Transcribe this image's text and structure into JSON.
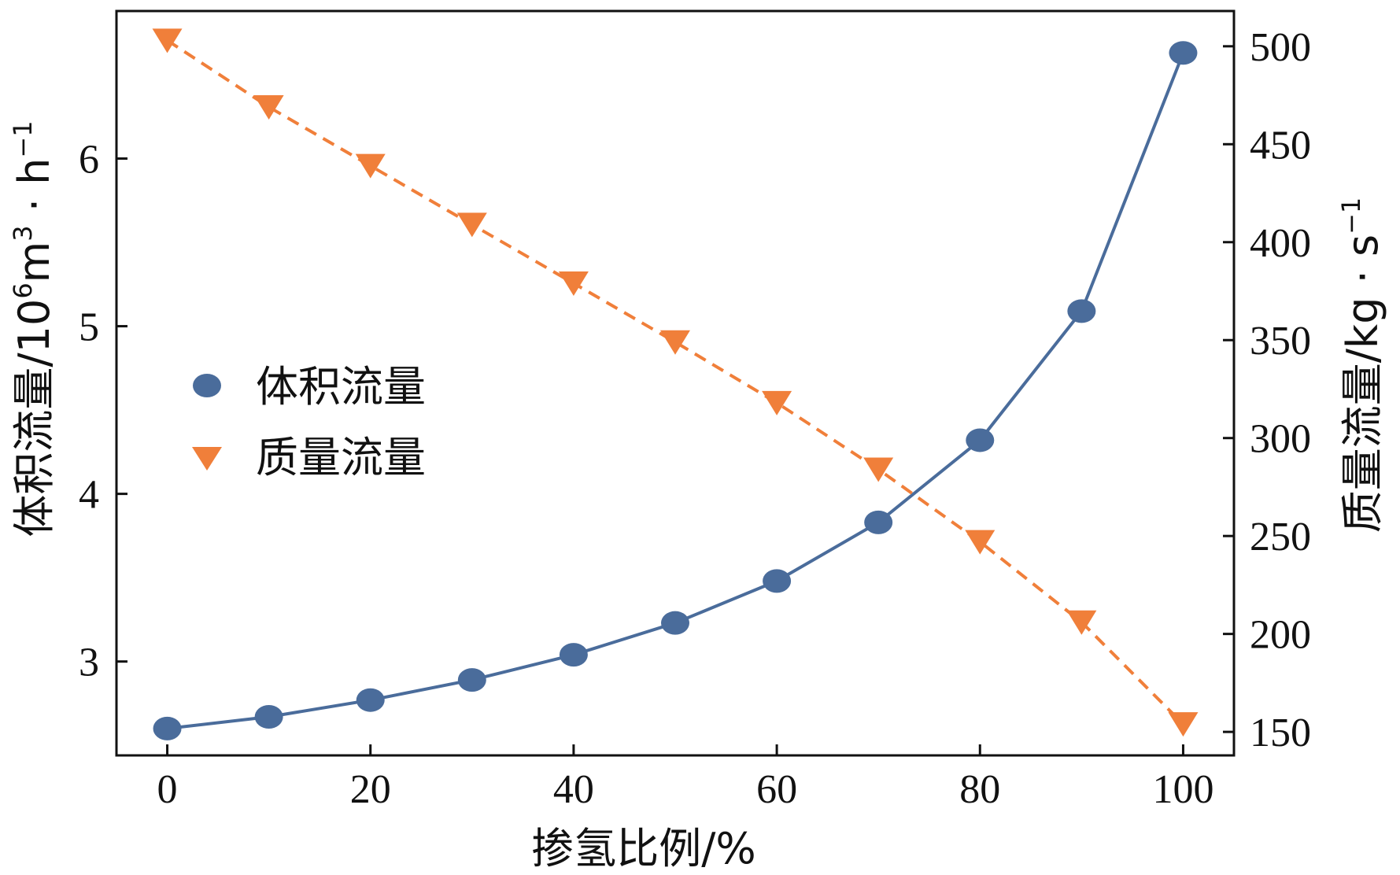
{
  "chart_data": {
    "type": "line",
    "x": [
      0,
      10,
      20,
      30,
      40,
      50,
      60,
      70,
      80,
      90,
      100
    ],
    "xlabel": "掺氢比例/%",
    "xlim": [
      -5,
      105
    ],
    "xticks": [
      0,
      20,
      40,
      60,
      80,
      100
    ],
    "series": [
      {
        "name": "体积流量",
        "axis": "left",
        "marker": "circle",
        "line_style": "solid",
        "color": "#4a6c9b",
        "values": [
          2.6,
          2.67,
          2.77,
          2.89,
          3.04,
          3.23,
          3.48,
          3.83,
          4.32,
          5.09,
          6.63
        ]
      },
      {
        "name": "质量流量",
        "axis": "right",
        "marker": "triangle-down",
        "line_style": "dashed",
        "color": "#f07f3a",
        "values": [
          503,
          469,
          439,
          409,
          379,
          349,
          318,
          284,
          247,
          206,
          154
        ]
      }
    ],
    "ylabel_left": {
      "main": "体积流量/10",
      "sup1": "6",
      "mid": "m",
      "sup2": "3",
      "dot": " · h",
      "sup3": "−1"
    },
    "ylim_left": [
      2.44,
      6.88
    ],
    "yticks_left": [
      3,
      4,
      5,
      6
    ],
    "ylabel_right": {
      "main": "质量流量/kg · s",
      "sup": "−1"
    },
    "ylim_right": [
      138,
      518
    ],
    "yticks_right": [
      150,
      200,
      250,
      300,
      350,
      400,
      450,
      500
    ],
    "legend": {
      "placement": "center-left",
      "entries": [
        "体积流量",
        "质量流量"
      ]
    }
  }
}
